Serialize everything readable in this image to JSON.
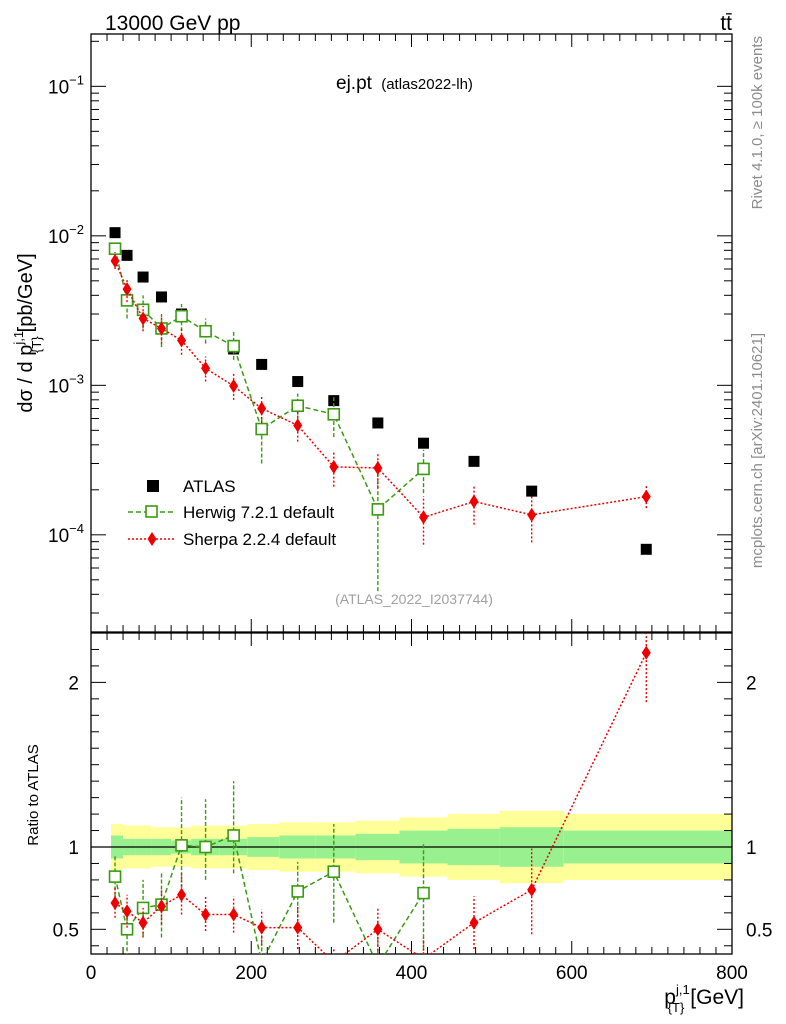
{
  "header": {
    "left": "13000 GeV pp",
    "right": "tt̄"
  },
  "side_text": {
    "upper": "Rivet 4.1.0, ≥ 100k events",
    "lower": "mcplots.cern.ch [arXiv:2401.10621]"
  },
  "colors": {
    "atlas": "#000000",
    "herwig": "#3a9a10",
    "sherpa": "#ee0000",
    "band_inner": "#99f08e",
    "band_outer": "#ffff99"
  },
  "chart_data": [
    {
      "type": "scatter",
      "panel": "main",
      "title": "ej.pt",
      "subtitle": "(atlas2022-lh)",
      "reference": "(ATLAS_2022_I2037744)",
      "ylabel": "dσ / d p",
      "ylabel_sup": "j,1",
      "ylabel_sub": "{T}",
      "ylabel_unit": "[pb/GeV]",
      "yscale": "log",
      "xlim": [
        0,
        800
      ],
      "ylim": [
        1.8e-05,
        0.22
      ],
      "ytick_labels": [
        {
          "mantissa": "10",
          "exponent": "−4",
          "value": 0.0001
        },
        {
          "mantissa": "10",
          "exponent": "−3",
          "value": 0.001
        },
        {
          "mantissa": "10",
          "exponent": "−2",
          "value": 0.01
        },
        {
          "mantissa": "10",
          "exponent": "−1",
          "value": 0.1
        }
      ],
      "legend": [
        "ATLAS",
        "Herwig 7.2.1 default",
        "Sherpa 2.2.4 default"
      ],
      "legend_position": "lower-left",
      "series": [
        {
          "name": "ATLAS",
          "x": [
            30,
            45,
            65,
            88,
            113,
            143,
            178,
            213,
            258,
            303,
            358,
            415,
            478,
            550,
            693
          ],
          "y": [
            0.0105,
            0.0074,
            0.0053,
            0.0039,
            0.003,
            0.0023,
            0.00175,
            0.00138,
            0.00106,
            0.00079,
            0.00056,
            0.00041,
            0.00031,
            0.000196,
            8e-05
          ]
        },
        {
          "name": "Herwig 7.2.1 default",
          "x": [
            30,
            45,
            65,
            88,
            113,
            143,
            178,
            213,
            258,
            303,
            358,
            415
          ],
          "y": [
            0.0082,
            0.0037,
            0.0032,
            0.0024,
            0.0029,
            0.0023,
            0.00183,
            0.00051,
            0.00073,
            0.00064,
            0.000148,
            0.000276
          ],
          "err_lo": [
            0.0075,
            0.0028,
            0.0024,
            0.0018,
            0.0023,
            0.0019,
            0.00148,
            0.0003,
            0.00058,
            0.00045,
            4.2e-05,
            0.00019
          ],
          "err_hi": [
            0.0088,
            0.0046,
            0.004,
            0.003,
            0.0035,
            0.0028,
            0.0023,
            0.00074,
            0.00088,
            0.00085,
            0.00032,
            0.00037
          ]
        },
        {
          "name": "Sherpa 2.2.4 default",
          "x": [
            30,
            45,
            65,
            88,
            113,
            143,
            178,
            213,
            258,
            303,
            358,
            415,
            478,
            550,
            693
          ],
          "y": [
            0.0068,
            0.0044,
            0.0028,
            0.0024,
            0.002,
            0.0013,
            0.00099,
            0.0007,
            0.00054,
            0.000285,
            0.00028,
            0.000131,
            0.000167,
            0.000136,
            0.00018
          ],
          "err_lo": [
            0.006,
            0.0036,
            0.0023,
            0.0019,
            0.0016,
            0.00106,
            0.0008,
            0.00056,
            0.00042,
            0.00021,
            0.000205,
            8.6e-05,
            0.000117,
            8.9e-05,
            0.000151
          ],
          "err_hi": [
            0.0078,
            0.0052,
            0.0034,
            0.0029,
            0.0024,
            0.00156,
            0.0012,
            0.00086,
            0.00068,
            0.00036,
            0.000355,
            0.000182,
            0.000216,
            0.000182,
            0.000212
          ]
        }
      ]
    },
    {
      "type": "scatter",
      "panel": "ratio",
      "ylabel": "Ratio to ATLAS",
      "xlabel": "p",
      "xlabel_sup": "j,1",
      "xlabel_sub": "{T}",
      "xlabel_unit": "[GeV]",
      "xlim": [
        0,
        800
      ],
      "ylim": [
        0.35,
        2.3
      ],
      "xtick_labels": [
        "0",
        "200",
        "400",
        "600",
        "800"
      ],
      "ytick_labels": [
        "0.5",
        "1",
        "2"
      ],
      "reference_line": 1,
      "band_edges": [
        25,
        40,
        55,
        75,
        100,
        125,
        160,
        195,
        235,
        280,
        330,
        385,
        445,
        510,
        590,
        800
      ],
      "band_inner_lo": [
        0.93,
        0.95,
        0.95,
        0.95,
        0.96,
        0.95,
        0.95,
        0.94,
        0.93,
        0.93,
        0.92,
        0.9,
        0.89,
        0.88,
        0.9
      ],
      "band_inner_hi": [
        1.07,
        1.05,
        1.05,
        1.05,
        1.04,
        1.05,
        1.05,
        1.06,
        1.07,
        1.07,
        1.08,
        1.1,
        1.11,
        1.12,
        1.1
      ],
      "band_outer_lo": [
        0.86,
        0.87,
        0.87,
        0.88,
        0.88,
        0.87,
        0.87,
        0.86,
        0.85,
        0.85,
        0.84,
        0.82,
        0.8,
        0.78,
        0.8
      ],
      "band_outer_hi": [
        1.14,
        1.13,
        1.13,
        1.12,
        1.12,
        1.13,
        1.13,
        1.14,
        1.15,
        1.15,
        1.16,
        1.18,
        1.2,
        1.22,
        1.2
      ],
      "series": [
        {
          "name": "Herwig 7.2.1 default",
          "x": [
            30,
            45,
            65,
            88,
            113,
            143,
            178,
            213,
            258,
            303,
            358,
            415
          ],
          "y": [
            0.82,
            0.5,
            0.63,
            0.65,
            1.01,
            1.0,
            1.07,
            0.3,
            0.73,
            0.85,
            0.28,
            0.72
          ],
          "err_lo": [
            0.7,
            0.33,
            0.46,
            0.45,
            0.75,
            0.8,
            0.84,
            0.22,
            0.57,
            0.54,
            0.1,
            0.3
          ],
          "err_hi": [
            0.95,
            0.65,
            0.8,
            0.85,
            1.3,
            1.29,
            1.4,
            0.5,
            0.91,
            1.14,
            0.55,
            1.02
          ]
        },
        {
          "name": "Sherpa 2.2.4 default",
          "x": [
            30,
            45,
            65,
            88,
            113,
            143,
            178,
            213,
            258,
            303,
            358,
            415,
            478,
            550,
            693
          ],
          "y": [
            0.66,
            0.61,
            0.54,
            0.64,
            0.71,
            0.59,
            0.59,
            0.51,
            0.51,
            0.3,
            0.5,
            0.32,
            0.54,
            0.74,
            2.18
          ],
          "err_lo": [
            0.57,
            0.51,
            0.45,
            0.53,
            0.59,
            0.49,
            0.48,
            0.4,
            0.38,
            0.22,
            0.37,
            0.2,
            0.38,
            0.47,
            1.88
          ],
          "err_hi": [
            0.76,
            0.71,
            0.63,
            0.75,
            0.84,
            0.7,
            0.7,
            0.62,
            0.64,
            0.39,
            0.63,
            0.45,
            0.7,
            0.99,
            2.49
          ]
        }
      ]
    }
  ]
}
